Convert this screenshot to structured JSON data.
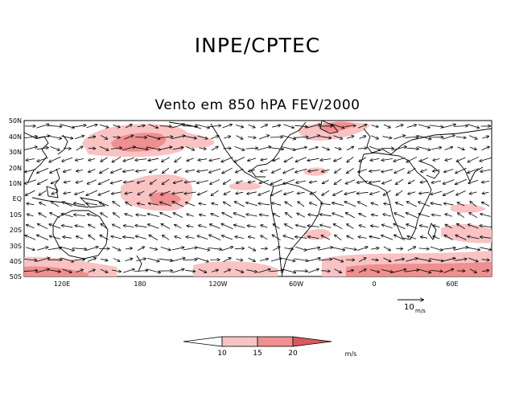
{
  "header": {
    "title": "INPE/CPTEC",
    "subtitle": "Vento em 850 hPA FEV/2000"
  },
  "map": {
    "lat_labels": [
      "50N",
      "40N",
      "30N",
      "20N",
      "10N",
      "EQ",
      "10S",
      "20S",
      "30S",
      "40S",
      "50S"
    ],
    "lon_labels": [
      "120E",
      "180",
      "120W",
      "60W",
      "0",
      "60E"
    ],
    "land_color": "#000000",
    "wind_shading": [
      {
        "name": "north-pacific-jet",
        "level": "15-20"
      },
      {
        "name": "central-pacific-equatorial",
        "level": "15-20"
      },
      {
        "name": "north-atlantic-jet",
        "level": "10-15"
      },
      {
        "name": "southern-ocean-band",
        "level": "10-20"
      }
    ]
  },
  "reference_vector": {
    "value": "10",
    "unit": "m/s"
  },
  "colorbar": {
    "ticks": [
      "10",
      "15",
      "20"
    ],
    "unit": "m/s",
    "colors": [
      "#ffffff",
      "#f9c3c3",
      "#ef8f8f",
      "#d95a5a"
    ]
  }
}
